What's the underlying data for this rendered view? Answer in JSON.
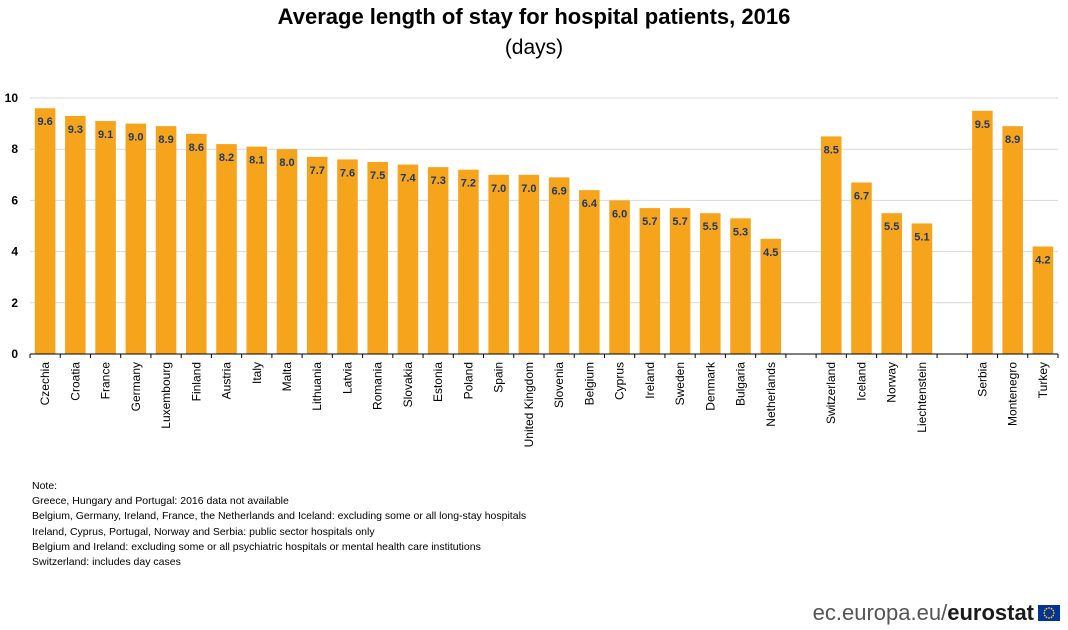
{
  "chart_data": {
    "type": "bar",
    "title": "Average length of stay for hospital patients, 2016",
    "subtitle": "(days)",
    "ylim": [
      0,
      10
    ],
    "yticks": [
      0,
      2,
      4,
      6,
      8,
      10
    ],
    "grid": true,
    "bar_color": "#F7A41D",
    "groups": [
      {
        "categories": [
          "Czechia",
          "Croatia",
          "France",
          "Germany",
          "Luxembourg",
          "Finland",
          "Austria",
          "Italy",
          "Malta",
          "Lithuania",
          "Latvia",
          "Romania",
          "Slovakia",
          "Estonia",
          "Poland",
          "Spain",
          "United Kingdom",
          "Slovenia",
          "Belgium",
          "Cyprus",
          "Ireland",
          "Sweden",
          "Denmark",
          "Bulgaria",
          "Netherlands"
        ],
        "values": [
          9.6,
          9.3,
          9.1,
          9.0,
          8.9,
          8.6,
          8.2,
          8.1,
          8.0,
          7.7,
          7.6,
          7.5,
          7.4,
          7.3,
          7.2,
          7.0,
          7.0,
          6.9,
          6.4,
          6.0,
          5.7,
          5.7,
          5.5,
          5.3,
          4.5
        ],
        "labels": [
          "9.6",
          "9.3",
          "9.1",
          "9.0",
          "8.9",
          "8.6",
          "8.2",
          "8.1",
          "8.0",
          "7.7",
          "7.6",
          "7.5",
          "7.4",
          "7.3",
          "7.2",
          "7.0",
          "7.0",
          "6.9",
          "6.4",
          "6.0",
          "5.7",
          "5.7",
          "5.5",
          "5.3",
          "4.5"
        ]
      },
      {
        "categories": [
          "Switzerland",
          "Iceland",
          "Norway",
          "Liechtenstein"
        ],
        "values": [
          8.5,
          6.7,
          5.5,
          5.1
        ],
        "labels": [
          "8.5",
          "6.7",
          "5.5",
          "5.1"
        ]
      },
      {
        "categories": [
          "Serbia",
          "Montenegro",
          "Turkey"
        ],
        "values": [
          9.5,
          8.9,
          4.2
        ],
        "labels": [
          "9.5",
          "8.9",
          "4.2"
        ]
      }
    ]
  },
  "notes": [
    "Note:",
    "Greece, Hungary and Portugal: 2016 data not available",
    "Belgium, Germany, Ireland, France, the Netherlands and Iceland:  excluding some or all long-stay hospitals",
    "Ireland, Cyprus, Portugal, Norway and Serbia: public sector hospitals only",
    "Belgium and Ireland: excluding  some or all psychiatric hospitals or mental health care institutions",
    "Switzerland: includes day cases"
  ],
  "brand": {
    "domain": "ec.europa.eu/",
    "name": "eurostat"
  },
  "colors": {
    "bar": "#F7A41D",
    "grid": "#d9d9d9",
    "axis": "#000000",
    "value_label": "#1f3864",
    "flag_blue": "#003399",
    "flag_star": "#ffcc00"
  }
}
